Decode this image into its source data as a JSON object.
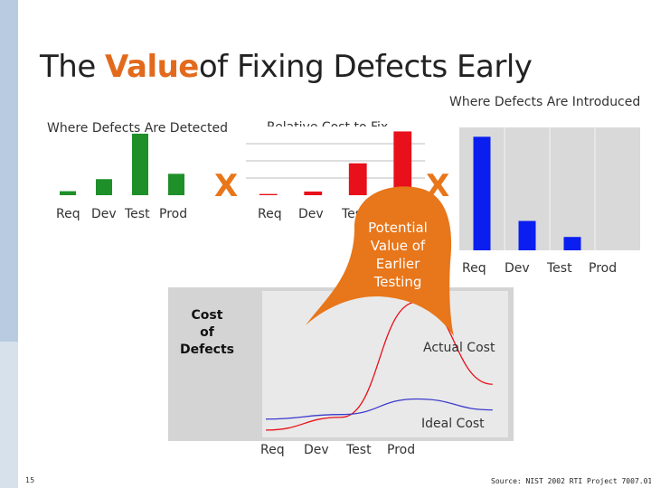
{
  "title": {
    "prefix": "The ",
    "accent": "Value",
    "suffix": "of Fixing Defects Early"
  },
  "labels": {
    "detected": "Where Defects Are Detected",
    "relative_cost": "Relative Cost to Fix",
    "introduced": "Where Defects Are Introduced",
    "x_mark": "X",
    "bubble": [
      "Potential",
      "Value of",
      "Earlier",
      "Testing"
    ],
    "cost_of_defects": [
      "Cost",
      "of",
      "Defects"
    ],
    "actual_cost": "Actual Cost",
    "ideal_cost": "Ideal Cost",
    "slide_number": "15",
    "source": "Source: NIST 2002 RTI Project 7007.011"
  },
  "colors": {
    "accent": "#e26a1c",
    "green": "#1f8f2a",
    "red": "#e8101a",
    "blue": "#0a1ef0",
    "bubble": "#e8761a"
  },
  "chart_data": [
    {
      "type": "bar",
      "name": "detected",
      "categories": [
        "Req",
        "Dev",
        "Test",
        "Prod"
      ],
      "values": [
        1.5,
        6,
        23,
        8
      ],
      "ylim": [
        0,
        25
      ],
      "color": "#1f8f2a"
    },
    {
      "type": "bar",
      "name": "relative_cost",
      "categories": [
        "Req",
        "Dev",
        "Test",
        "Prod"
      ],
      "values": [
        0.5,
        1.5,
        13,
        26
      ],
      "ylim": [
        0,
        28
      ],
      "color": "#e8101a"
    },
    {
      "type": "bar",
      "name": "introduced",
      "categories": [
        "Req",
        "Dev",
        "Test",
        "Prod"
      ],
      "values": [
        85,
        22,
        10,
        0
      ],
      "ylim": [
        0,
        92
      ],
      "color": "#0a1ef0"
    },
    {
      "type": "line",
      "name": "cost_of_defects",
      "categories": [
        "Req",
        "Dev",
        "Test",
        "Prod"
      ],
      "series": [
        {
          "name": "Actual Cost",
          "color": "#e8101a",
          "values": [
            8,
            22,
            148,
            58
          ]
        },
        {
          "name": "Ideal Cost",
          "color": "#3a3acc",
          "values": [
            20,
            25,
            42,
            30
          ]
        }
      ],
      "ylim": [
        0,
        160
      ]
    }
  ]
}
